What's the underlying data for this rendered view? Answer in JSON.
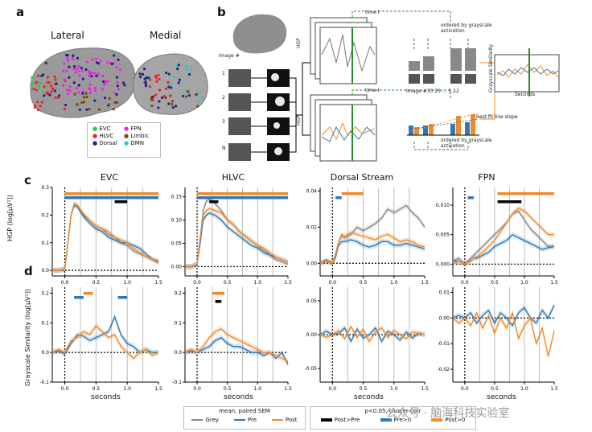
{
  "panel_a": {
    "label": "a",
    "lateral_title": "Lateral",
    "medial_title": "Medial",
    "legend": [
      {
        "name": "EVC",
        "color": "#22cc55"
      },
      {
        "name": "FPN",
        "color": "#ee22ee"
      },
      {
        "name": "HLVC",
        "color": "#ee2222"
      },
      {
        "name": "Limbic",
        "color": "#884400"
      },
      {
        "name": "Dorsal",
        "color": "#222288"
      },
      {
        "name": "DMN",
        "color": "#22cccc"
      }
    ]
  },
  "panel_b": {
    "label": "b",
    "image_hash": "Image #",
    "rows": [
      "1",
      "2",
      "3",
      "N"
    ],
    "time_t": "time t",
    "hgp": "HGP",
    "ordered": "ordered by grayscale activation",
    "image_numbers": "Image #33   25   ...   5   22",
    "best_fit": "best fit line slope",
    "gs": "Grayscale Similarity",
    "seconds": "Seconds"
  },
  "panel_c": {
    "label": "c",
    "ylabel": "HGP (log[μV²])",
    "titles": [
      "EVC",
      "HLVC",
      "Dorsal Stream",
      "FPN"
    ]
  },
  "panel_d": {
    "label": "d",
    "ylabel": "Grayscale Similarity (log[μV²])",
    "xlabel": "seconds"
  },
  "legend_lines": {
    "title": "mean, paired SEM",
    "items": [
      {
        "name": "Grey",
        "color": "#888888"
      },
      {
        "name": "Pre",
        "color": "#2e78b5"
      },
      {
        "name": "Post",
        "color": "#f08a2a"
      }
    ]
  },
  "legend_bars": {
    "title": "p<0.05, cluster-corr",
    "items": [
      {
        "name": "Post>Pre",
        "color": "#000000"
      },
      {
        "name": "Pre>0",
        "color": "#2e78b5"
      },
      {
        "name": "Post>0",
        "color": "#f08a2a"
      }
    ]
  },
  "watermark": "公众号 · 脑海科技实验室",
  "chart_data": [
    {
      "type": "line",
      "title": "EVC",
      "row": "c",
      "xlim": [
        -0.2,
        1.5
      ],
      "ylim": [
        -0.02,
        0.3
      ],
      "xticks": [
        "0.0",
        "0.5",
        "1.0",
        "1.5"
      ],
      "yticks": [
        "0.0",
        "0.1",
        "0.2",
        "0.3"
      ],
      "x": [
        -0.2,
        -0.1,
        0,
        0.05,
        0.1,
        0.15,
        0.2,
        0.3,
        0.4,
        0.5,
        0.6,
        0.7,
        0.8,
        0.9,
        1.0,
        1.1,
        1.2,
        1.3,
        1.4,
        1.5
      ],
      "series": [
        {
          "name": "Grey",
          "values": [
            0,
            0,
            0.005,
            0.1,
            0.2,
            0.24,
            0.235,
            0.2,
            0.18,
            0.16,
            0.15,
            0.13,
            0.12,
            0.1,
            0.09,
            0.07,
            0.06,
            0.05,
            0.04,
            0.03
          ]
        },
        {
          "name": "Pre",
          "values": [
            0,
            0,
            0.005,
            0.1,
            0.2,
            0.235,
            0.23,
            0.195,
            0.17,
            0.15,
            0.14,
            0.12,
            0.11,
            0.1,
            0.1,
            0.09,
            0.08,
            0.06,
            0.04,
            0.03
          ]
        },
        {
          "name": "Post",
          "values": [
            0,
            0,
            0.005,
            0.1,
            0.2,
            0.24,
            0.235,
            0.205,
            0.18,
            0.16,
            0.15,
            0.14,
            0.12,
            0.11,
            0.1,
            0.08,
            0.065,
            0.05,
            0.04,
            0.035
          ]
        }
      ],
      "sig": [
        {
          "name": "Post>0",
          "from": 0,
          "to": 1.5
        },
        {
          "name": "Pre>0",
          "from": 0,
          "to": 1.5
        },
        {
          "name": "Post>Pre",
          "from": 0.8,
          "to": 1.0
        }
      ]
    },
    {
      "type": "line",
      "title": "HLVC",
      "row": "c",
      "xlim": [
        -0.2,
        1.5
      ],
      "ylim": [
        -0.02,
        0.17
      ],
      "xticks": [
        "0.0",
        "0.5",
        "1.0",
        "1.5"
      ],
      "yticks": [
        "0.00",
        "0.05",
        "0.10",
        "0.15"
      ],
      "x": [
        -0.2,
        -0.1,
        0,
        0.05,
        0.1,
        0.15,
        0.2,
        0.3,
        0.4,
        0.5,
        0.6,
        0.7,
        0.8,
        0.9,
        1.0,
        1.1,
        1.2,
        1.3,
        1.4,
        1.5
      ],
      "series": [
        {
          "name": "Grey",
          "values": [
            0,
            0,
            0.005,
            0.06,
            0.12,
            0.14,
            0.145,
            0.135,
            0.12,
            0.1,
            0.09,
            0.075,
            0.065,
            0.055,
            0.045,
            0.035,
            0.025,
            0.015,
            0.01,
            0.005
          ]
        },
        {
          "name": "Pre",
          "values": [
            0,
            0,
            0.005,
            0.05,
            0.1,
            0.11,
            0.115,
            0.11,
            0.1,
            0.085,
            0.075,
            0.065,
            0.055,
            0.045,
            0.04,
            0.03,
            0.025,
            0.02,
            0.015,
            0.01
          ]
        },
        {
          "name": "Post",
          "values": [
            0,
            0,
            0.005,
            0.06,
            0.11,
            0.12,
            0.125,
            0.12,
            0.115,
            0.1,
            0.09,
            0.075,
            0.065,
            0.055,
            0.045,
            0.04,
            0.03,
            0.02,
            0.015,
            0.01
          ]
        }
      ],
      "sig": [
        {
          "name": "Post>0",
          "from": 0,
          "to": 1.5
        },
        {
          "name": "Pre>0",
          "from": 0,
          "to": 1.5
        },
        {
          "name": "Post>Pre",
          "from": 0.2,
          "to": 0.35
        }
      ]
    },
    {
      "type": "line",
      "title": "Dorsal Stream",
      "row": "c",
      "xlim": [
        -0.2,
        1.5
      ],
      "ylim": [
        -0.007,
        0.042
      ],
      "xticks": [
        "0.0",
        "0.5",
        "1.0",
        "1.5"
      ],
      "yticks": [
        "0.00",
        "0.02",
        "0.04"
      ],
      "x": [
        -0.2,
        -0.1,
        0,
        0.05,
        0.1,
        0.15,
        0.2,
        0.3,
        0.4,
        0.5,
        0.6,
        0.7,
        0.8,
        0.9,
        1.0,
        1.1,
        1.2,
        1.3,
        1.4,
        1.5
      ],
      "series": [
        {
          "name": "Grey",
          "values": [
            0,
            0.002,
            0,
            0.005,
            0.012,
            0.015,
            0.014,
            0.016,
            0.02,
            0.018,
            0.02,
            0.022,
            0.025,
            0.03,
            0.028,
            0.03,
            0.032,
            0.028,
            0.025,
            0.02
          ]
        },
        {
          "name": "Pre",
          "values": [
            0,
            0.001,
            0,
            0.003,
            0.01,
            0.012,
            0.012,
            0.013,
            0.012,
            0.01,
            0.009,
            0.01,
            0.012,
            0.012,
            0.01,
            0.01,
            0.011,
            0.01,
            0.009,
            0.008
          ]
        },
        {
          "name": "Post",
          "values": [
            0,
            0.001,
            0,
            0.004,
            0.012,
            0.016,
            0.015,
            0.017,
            0.016,
            0.015,
            0.014,
            0.013,
            0.015,
            0.016,
            0.014,
            0.012,
            0.013,
            0.012,
            0.01,
            0.009
          ]
        }
      ],
      "sig": [
        {
          "name": "Pre>0",
          "from": 0.05,
          "to": 0.15
        },
        {
          "name": "Post>0",
          "from": 0.15,
          "to": 0.5
        }
      ]
    },
    {
      "type": "line",
      "title": "FPN",
      "row": "c",
      "xlim": [
        -0.2,
        1.5
      ],
      "ylim": [
        -0.002,
        0.013
      ],
      "xticks": [
        "0.0",
        "0.5",
        "1.0",
        "1.5"
      ],
      "yticks": [
        "0.000",
        "0.005",
        "0.010"
      ],
      "x": [
        -0.2,
        -0.1,
        0,
        0.05,
        0.1,
        0.15,
        0.2,
        0.3,
        0.4,
        0.5,
        0.6,
        0.7,
        0.8,
        0.9,
        1.0,
        1.1,
        1.2,
        1.3,
        1.4,
        1.5
      ],
      "series": [
        {
          "name": "Grey",
          "values": [
            0.0005,
            0.001,
            0,
            0.0005,
            0.001,
            0.0015,
            0.002,
            0.003,
            0.004,
            0.005,
            0.006,
            0.007,
            0.0085,
            0.009,
            0.0075,
            0.006,
            0.005,
            0.004,
            0.003,
            0.003
          ]
        },
        {
          "name": "Pre",
          "values": [
            0.0005,
            0.0005,
            0,
            0.0003,
            0.0006,
            0.001,
            0.001,
            0.0015,
            0.002,
            0.003,
            0.0035,
            0.004,
            0.005,
            0.0045,
            0.004,
            0.0035,
            0.003,
            0.0025,
            0.0028,
            0.003
          ]
        },
        {
          "name": "Post",
          "values": [
            0,
            0.0005,
            0,
            0.0003,
            0.0005,
            0.001,
            0.0012,
            0.002,
            0.003,
            0.004,
            0.0055,
            0.007,
            0.0085,
            0.0095,
            0.009,
            0.008,
            0.007,
            0.006,
            0.005,
            0.005
          ]
        }
      ],
      "sig": [
        {
          "name": "Post>0",
          "from": 0.55,
          "to": 1.5
        },
        {
          "name": "Pre>0",
          "from": 0.05,
          "to": 0.15
        },
        {
          "name": "Post>Pre",
          "from": 0.55,
          "to": 0.95
        }
      ]
    },
    {
      "type": "line",
      "title": "EVC",
      "row": "d",
      "xlim": [
        -0.2,
        1.5
      ],
      "ylim": [
        -0.1,
        0.22
      ],
      "xticks": [
        "0.0",
        "0.5",
        "1.0",
        "1.5"
      ],
      "yticks": [
        "-0.1",
        "0.0",
        "0.1",
        "0.2"
      ],
      "x": [
        -0.2,
        -0.1,
        0,
        0.1,
        0.2,
        0.3,
        0.4,
        0.5,
        0.6,
        0.7,
        0.8,
        0.9,
        1.0,
        1.1,
        1.2,
        1.3,
        1.4,
        1.5
      ],
      "series": [
        {
          "name": "Pre",
          "values": [
            0,
            0.005,
            -0.005,
            0.03,
            0.06,
            0.055,
            0.04,
            0.05,
            0.06,
            0.07,
            0.12,
            0.06,
            0.03,
            0.02,
            0.0,
            0.01,
            0.0,
            0.0
          ]
        },
        {
          "name": "Post",
          "values": [
            0,
            0.01,
            0,
            0.04,
            0.05,
            0.07,
            0.06,
            0.09,
            0.07,
            0.05,
            0.06,
            0.02,
            0.0,
            -0.02,
            0.0,
            0.01,
            -0.01,
            0.0
          ]
        }
      ],
      "sig": [
        {
          "name": "Post>0",
          "from": 0.3,
          "to": 0.45
        },
        {
          "name": "Pre>0",
          "from": 0.15,
          "to": 0.3
        },
        {
          "name": "Pre>0",
          "from": 0.85,
          "to": 1.0
        }
      ]
    },
    {
      "type": "line",
      "title": "HLVC",
      "row": "d",
      "xlim": [
        -0.2,
        1.5
      ],
      "ylim": [
        -0.1,
        0.22
      ],
      "xticks": [
        "0.0",
        "0.5",
        "1.0",
        "1.5"
      ],
      "yticks": [
        "-0.1",
        "0.0",
        "0.1",
        "0.2"
      ],
      "x": [
        -0.2,
        -0.1,
        0,
        0.1,
        0.2,
        0.3,
        0.4,
        0.5,
        0.6,
        0.7,
        0.8,
        0.9,
        1.0,
        1.1,
        1.2,
        1.3,
        1.4,
        1.5
      ],
      "series": [
        {
          "name": "Pre",
          "values": [
            0,
            0.005,
            0,
            0.01,
            0.02,
            0.04,
            0.05,
            0.03,
            0.02,
            0.02,
            0.01,
            0.0,
            0.0,
            -0.01,
            0.0,
            -0.02,
            0.0,
            -0.04
          ]
        },
        {
          "name": "Post",
          "values": [
            0,
            0.01,
            0,
            0.02,
            0.05,
            0.07,
            0.08,
            0.06,
            0.05,
            0.04,
            0.03,
            0.02,
            0.01,
            0.0,
            0.0,
            -0.01,
            -0.02,
            -0.03
          ]
        }
      ],
      "sig": [
        {
          "name": "Post>0",
          "from": 0.25,
          "to": 0.45
        },
        {
          "name": "Post>Pre",
          "from": 0.3,
          "to": 0.4
        }
      ]
    },
    {
      "type": "line",
      "title": "Dorsal Stream",
      "row": "d",
      "xlim": [
        -0.2,
        1.5
      ],
      "ylim": [
        -0.07,
        0.07
      ],
      "xticks": [
        "0.0",
        "0.5",
        "1.0",
        "1.5"
      ],
      "yticks": [
        "-0.05",
        "0.00",
        "0.05"
      ],
      "x": [
        -0.2,
        -0.1,
        0,
        0.1,
        0.2,
        0.3,
        0.4,
        0.5,
        0.6,
        0.7,
        0.8,
        0.9,
        1.0,
        1.1,
        1.2,
        1.3,
        1.4,
        1.5
      ],
      "series": [
        {
          "name": "Pre",
          "values": [
            0,
            0.005,
            0,
            0.002,
            0.01,
            -0.01,
            0.008,
            -0.005,
            0.0,
            0.01,
            -0.01,
            0.005,
            0.0,
            -0.008,
            0.004,
            -0.005,
            0.002,
            0.0
          ]
        },
        {
          "name": "Post",
          "values": [
            0,
            -0.004,
            0,
            0.006,
            -0.006,
            0.012,
            -0.004,
            0.008,
            -0.01,
            0.004,
            0.01,
            -0.004,
            0.006,
            0.0,
            -0.006,
            0.004,
            0.002,
            0.0
          ]
        }
      ],
      "sig": []
    },
    {
      "type": "line",
      "title": "FPN",
      "row": "d",
      "xlim": [
        -0.2,
        1.5
      ],
      "ylim": [
        -0.025,
        0.012
      ],
      "xticks": [
        "0.0",
        "0.5",
        "1.0",
        "1.5"
      ],
      "yticks": [
        "-0.02",
        "-0.01",
        "0.00",
        "0.01"
      ],
      "x": [
        -0.2,
        -0.1,
        0,
        0.1,
        0.2,
        0.3,
        0.4,
        0.5,
        0.6,
        0.7,
        0.8,
        0.9,
        1.0,
        1.1,
        1.2,
        1.3,
        1.4,
        1.5
      ],
      "series": [
        {
          "name": "Pre",
          "values": [
            0,
            0.001,
            0,
            0.002,
            -0.002,
            0.001,
            0.003,
            -0.002,
            0.002,
            0.0,
            -0.003,
            0.002,
            0.004,
            0.0,
            -0.002,
            0.003,
            0.0,
            0.005
          ]
        },
        {
          "name": "Post",
          "values": [
            0,
            -0.002,
            0,
            -0.003,
            0.002,
            -0.004,
            0.001,
            -0.006,
            0.0,
            -0.004,
            0.002,
            -0.008,
            -0.003,
            0.0,
            -0.01,
            -0.004,
            -0.015,
            -0.005
          ]
        }
      ],
      "sig": []
    }
  ]
}
